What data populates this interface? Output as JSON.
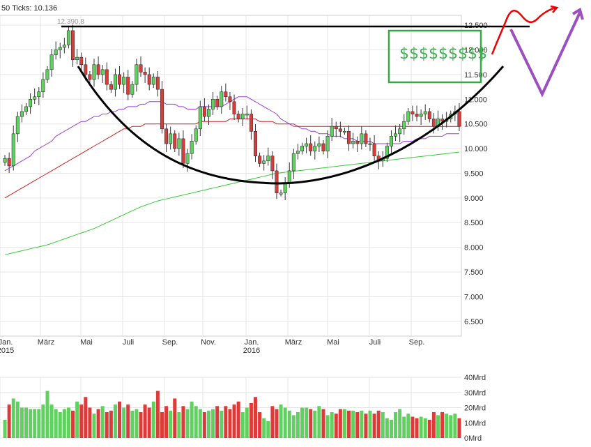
{
  "header": {
    "ticks_label": "50 Ticks: 10.136",
    "max_label": "12.390,8"
  },
  "colors": {
    "up": "#5ed15e",
    "down": "#dd3a3a",
    "ma_short": "#9b3fd6",
    "ma_mid": "#cc2222",
    "ma_long": "#33cc33",
    "annotation_black": "#000000",
    "annotation_red": "#ff0000",
    "annotation_purple": "#9b4fc0",
    "annotation_green": "#33aa44",
    "grid": "#e6e6e6"
  },
  "annotation": {
    "money_text": "$$$$$$$$$"
  },
  "chart_data": [
    {
      "type": "candlestick",
      "title": "",
      "xlabel": "",
      "ylabel": "",
      "ylim": [
        6200,
        12700
      ],
      "y_ticks": [
        "12.500",
        "12.000",
        "11.500",
        "11.000",
        "10.500",
        "10.000",
        "9.500",
        "9.000",
        "8.500",
        "8.000",
        "7.500",
        "7.000",
        "6.500"
      ],
      "y_tick_values": [
        12500,
        12000,
        11500,
        11000,
        10500,
        10000,
        9500,
        9000,
        8500,
        8000,
        7500,
        7000,
        6500
      ],
      "x_ticks": [
        {
          "label": "Jan.",
          "sub": "2015"
        },
        {
          "label": "März",
          "sub": ""
        },
        {
          "label": "Mai",
          "sub": ""
        },
        {
          "label": "Juli",
          "sub": ""
        },
        {
          "label": "Sep.",
          "sub": ""
        },
        {
          "label": "Nov.",
          "sub": ""
        },
        {
          "label": "Jan.",
          "sub": "2016"
        },
        {
          "label": "März",
          "sub": ""
        },
        {
          "label": "Mai",
          "sub": ""
        },
        {
          "label": "Juli",
          "sub": ""
        },
        {
          "label": "Sep.",
          "sub": ""
        }
      ],
      "closes": [
        9800,
        9650,
        10300,
        10650,
        10750,
        10850,
        11000,
        11050,
        11150,
        11400,
        11600,
        11900,
        12000,
        12050,
        12100,
        12390,
        11800,
        11850,
        11700,
        11500,
        11400,
        11700,
        11500,
        11600,
        11300,
        11200,
        11500,
        11300,
        11450,
        11100,
        11300,
        11700,
        11550,
        11500,
        11300,
        11450,
        11200,
        10400,
        10100,
        10300,
        10000,
        10200,
        9700,
        9900,
        10150,
        10400,
        10850,
        10650,
        10800,
        11000,
        10850,
        11150,
        11050,
        10950,
        10700,
        10600,
        10700,
        10700,
        10350,
        9850,
        9700,
        9750,
        9850,
        9550,
        9100,
        9100,
        9300,
        9550,
        9900,
        9950,
        10050,
        10100,
        9950,
        10050,
        10100,
        9950,
        10250,
        10450,
        10400,
        10350,
        10350,
        10100,
        10150,
        10100,
        10300,
        10100,
        10100,
        9850,
        9750,
        9800,
        10050,
        10250,
        10300,
        10400,
        10550,
        10750,
        10700,
        10650,
        10700,
        10750,
        10600,
        10450,
        10600,
        10550,
        10600,
        10700,
        10750,
        10450
      ],
      "ma_short": [
        9550,
        9600,
        9650,
        9700,
        9750,
        9800,
        9850,
        9950,
        10000,
        10050,
        10100,
        10150,
        10250,
        10300,
        10350,
        10400,
        10450,
        10500,
        10550,
        10550,
        10600,
        10650,
        10650,
        10700,
        10700,
        10750,
        10750,
        10800,
        10800,
        10850,
        10850,
        10850,
        10900,
        10900,
        10950,
        10950,
        10950,
        10950,
        10900,
        10900,
        10900,
        10850,
        10850,
        10800,
        10800,
        10800,
        10850,
        10850,
        10850,
        10850,
        10850,
        10850,
        10900,
        10950,
        11000,
        11050,
        11050,
        11050,
        11000,
        10950,
        10900,
        10850,
        10800,
        10750,
        10700,
        10600,
        10550,
        10500,
        10450,
        10450,
        10400,
        10400,
        10350,
        10350,
        10300,
        10300,
        10300,
        10250,
        10250,
        10250,
        10200,
        10200,
        10200,
        10150,
        10150,
        10150,
        10150,
        10100,
        10100,
        10100,
        10100,
        10100,
        10100,
        10100,
        10150,
        10150,
        10150,
        10200,
        10200,
        10200,
        10250,
        10250,
        10250,
        10250,
        10300,
        10300,
        10300,
        10300
      ],
      "ma_mid": [
        9000,
        9050,
        9100,
        9150,
        9200,
        9250,
        9300,
        9350,
        9400,
        9450,
        9500,
        9550,
        9600,
        9650,
        9700,
        9750,
        9800,
        9850,
        9900,
        9950,
        10000,
        10050,
        10100,
        10150,
        10200,
        10250,
        10300,
        10350,
        10400,
        10400,
        10450,
        10450,
        10450,
        10500,
        10500,
        10500,
        10500,
        10500,
        10500,
        10500,
        10500,
        10500,
        10500,
        10500,
        10500,
        10500,
        10550,
        10550,
        10550,
        10550,
        10550,
        10550,
        10550,
        10600,
        10600,
        10600,
        10600,
        10600,
        10600,
        10600,
        10550,
        10550,
        10550,
        10550,
        10500,
        10500,
        10500,
        10500,
        10500,
        10450,
        10450,
        10450,
        10450,
        10450,
        10450,
        10450,
        10450,
        10450,
        10450,
        10450,
        10450,
        10450,
        10450,
        10450,
        10450,
        10450,
        10450,
        10450,
        10450,
        10450,
        10450,
        10450,
        10450,
        10450,
        10450,
        10450,
        10450,
        10450,
        10450,
        10450,
        10450,
        10450,
        10450,
        10450,
        10450,
        10450,
        10450,
        10450
      ],
      "ma_long": [
        7850,
        7870,
        7890,
        7910,
        7930,
        7950,
        7970,
        7990,
        8010,
        8030,
        8050,
        8080,
        8110,
        8140,
        8170,
        8200,
        8230,
        8260,
        8290,
        8320,
        8350,
        8380,
        8420,
        8460,
        8500,
        8540,
        8580,
        8620,
        8660,
        8700,
        8740,
        8780,
        8820,
        8850,
        8880,
        8910,
        8940,
        8960,
        8980,
        9000,
        9020,
        9040,
        9060,
        9080,
        9100,
        9120,
        9140,
        9160,
        9180,
        9200,
        9220,
        9240,
        9260,
        9280,
        9300,
        9320,
        9340,
        9360,
        9380,
        9400,
        9420,
        9440,
        9460,
        9480,
        9500,
        9510,
        9520,
        9530,
        9540,
        9550,
        9560,
        9570,
        9580,
        9590,
        9600,
        9610,
        9620,
        9630,
        9640,
        9650,
        9660,
        9670,
        9680,
        9690,
        9700,
        9710,
        9720,
        9730,
        9740,
        9750,
        9760,
        9770,
        9780,
        9790,
        9800,
        9810,
        9820,
        9830,
        9840,
        9850,
        9860,
        9870,
        9880,
        9890,
        9900,
        9910,
        9920,
        9930
      ]
    },
    {
      "type": "bar",
      "title": "",
      "xlabel": "",
      "ylabel": "",
      "ylim": [
        0,
        40
      ],
      "y_ticks": [
        "40Mrd",
        "30Mrd",
        "20Mrd",
        "10Mrd",
        "0Mrd"
      ],
      "y_tick_values": [
        40,
        30,
        20,
        10,
        0
      ],
      "values": [
        12,
        22,
        26,
        24,
        20,
        20,
        19,
        19,
        19,
        22,
        31,
        22,
        19,
        17,
        19,
        20,
        18,
        24,
        22,
        27,
        20,
        16,
        19,
        21,
        17,
        18,
        22,
        24,
        20,
        22,
        18,
        19,
        17,
        22,
        20,
        24,
        31,
        17,
        21,
        18,
        26,
        17,
        21,
        19,
        24,
        21,
        19,
        17,
        18,
        19,
        21,
        18,
        21,
        19,
        22,
        24,
        17,
        20,
        23,
        27,
        17,
        13,
        11,
        21,
        19,
        22,
        20,
        18,
        15,
        17,
        20,
        20,
        19,
        18,
        21,
        19,
        15,
        17,
        16,
        19,
        19,
        18,
        18,
        17,
        18,
        16,
        18,
        16,
        18,
        17,
        13,
        12,
        17,
        19,
        14,
        16,
        14,
        13,
        14,
        13,
        12,
        17,
        15,
        17,
        16,
        15,
        16,
        13
      ]
    }
  ]
}
